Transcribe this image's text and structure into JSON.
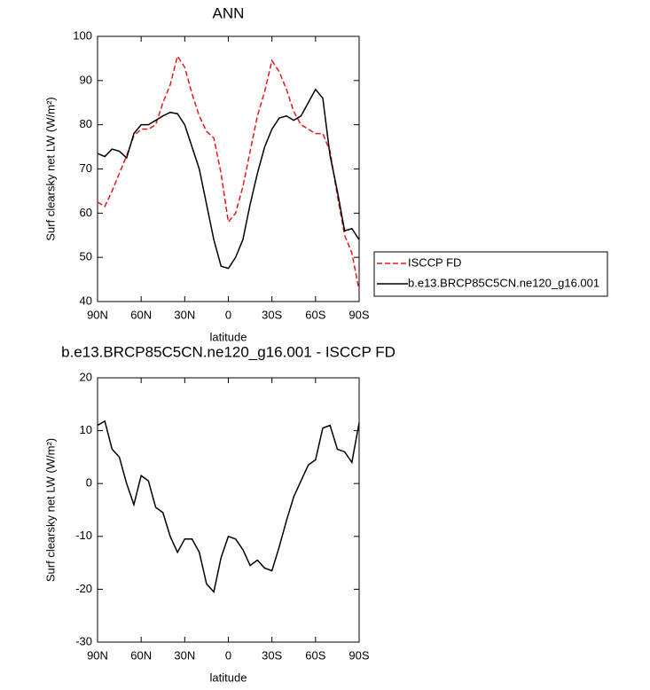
{
  "chart_data": [
    {
      "type": "line",
      "title": "ANN",
      "x_label": "latitude",
      "y_label": "Surf clearsky net LW (W/m²)",
      "x": [
        90,
        85,
        80,
        75,
        70,
        65,
        60,
        55,
        50,
        45,
        40,
        35,
        30,
        25,
        20,
        15,
        10,
        5,
        0,
        -5,
        -10,
        -15,
        -20,
        -25,
        -30,
        -35,
        -40,
        -45,
        -50,
        -55,
        -60,
        -65,
        -70,
        -75,
        -80,
        -85,
        -90
      ],
      "series": [
        {
          "name": "ISCCP FD",
          "color": "#e41a1c",
          "dashed": true,
          "values": [
            62.5,
            61.5,
            65,
            69,
            73,
            77.5,
            79,
            79,
            80,
            85,
            89,
            95.5,
            93,
            87,
            82,
            78.5,
            77,
            69,
            58,
            60,
            66,
            74,
            82,
            87.5,
            94.5,
            92,
            88,
            83,
            80,
            79,
            78,
            78,
            74,
            64,
            55,
            51,
            42.5
          ]
        },
        {
          "name": "b.e13.BRCP85C5CN.ne120_g16.001",
          "color": "#000000",
          "dashed": false,
          "values": [
            73.5,
            72.8,
            74.5,
            74,
            72.5,
            78,
            80,
            80,
            81,
            82,
            82.8,
            82.5,
            80,
            75,
            70,
            62,
            54,
            48,
            47.5,
            50,
            54,
            62,
            69,
            75,
            79,
            81.5,
            82,
            81,
            82,
            85,
            88,
            86,
            73,
            65,
            56,
            56.5,
            54
          ]
        }
      ],
      "xlim": [
        90,
        -90
      ],
      "xticks": [
        {
          "value": 90,
          "label": "90N"
        },
        {
          "value": 60,
          "label": "60N"
        },
        {
          "value": 30,
          "label": "30N"
        },
        0,
        {
          "value": -30,
          "label": "30S"
        },
        {
          "value": -60,
          "label": "60S"
        },
        {
          "value": -90,
          "label": "90S"
        }
      ],
      "ylim": [
        40,
        100
      ],
      "yticks": [
        40,
        50,
        60,
        70,
        80,
        90,
        100
      ],
      "legend": "right"
    },
    {
      "type": "line",
      "title": "b.e13.BRCP85C5CN.ne120_g16.001 - ISCCP FD",
      "x_label": "latitude",
      "y_label": "Surf clearsky net LW (W/m²)",
      "x": [
        90,
        85,
        80,
        75,
        70,
        65,
        60,
        55,
        50,
        45,
        40,
        35,
        30,
        25,
        20,
        15,
        10,
        5,
        0,
        -5,
        -10,
        -15,
        -20,
        -25,
        -30,
        -35,
        -40,
        -45,
        -50,
        -55,
        -60,
        -65,
        -70,
        -75,
        -80,
        -85,
        -90
      ],
      "color": "#000000",
      "values": [
        11,
        11.8,
        6.5,
        5,
        0,
        -4,
        1.5,
        0.5,
        -4.5,
        -5.5,
        -10,
        -13,
        -10.5,
        -10.5,
        -13,
        -19,
        -20.5,
        -14,
        -10,
        -10.5,
        -12.5,
        -15.5,
        -14.5,
        -16,
        -16.5,
        -12,
        -7,
        -2.5,
        0.5,
        3.5,
        4.5,
        10.5,
        11,
        6.5,
        6,
        4,
        11.5
      ],
      "xlim": [
        90,
        -90
      ],
      "xticks": [
        {
          "value": 90,
          "label": "90N"
        },
        {
          "value": 60,
          "label": "60N"
        },
        {
          "value": 30,
          "label": "30N"
        },
        0,
        {
          "value": -30,
          "label": "30S"
        },
        {
          "value": -60,
          "label": "60S"
        },
        {
          "value": -90,
          "label": "90S"
        }
      ],
      "ylim": [
        -30,
        20
      ],
      "yticks": [
        -30,
        -20,
        -10,
        0,
        10,
        20
      ]
    }
  ]
}
